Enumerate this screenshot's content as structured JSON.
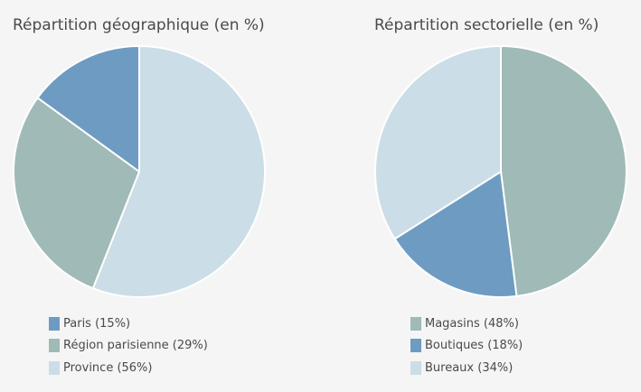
{
  "chart_data": [
    {
      "type": "pie",
      "title": "Répartition géographique (en %)",
      "categories": [
        "Paris",
        "Région parisienne",
        "Province"
      ],
      "values": [
        15,
        29,
        56
      ],
      "colors": [
        "#6e9bc2",
        "#9fbab7",
        "#cbdde6"
      ],
      "legend": [
        "Paris (15%)",
        "Région parisienne (29%)",
        "Province (56%)"
      ],
      "start_order": [
        2,
        1,
        0
      ],
      "legend_placement": "bottom-left"
    },
    {
      "type": "pie",
      "title": "Répartition sectorielle (en %)",
      "categories": [
        "Magasins",
        "Boutiques",
        "Bureaux"
      ],
      "values": [
        48,
        18,
        34
      ],
      "colors": [
        "#9fbab7",
        "#6e9bc2",
        "#cbdde6"
      ],
      "legend": [
        "Magasins (48%)",
        "Boutiques (18%)",
        "Bureaux (34%)"
      ],
      "start_order": [
        0,
        1,
        2
      ],
      "legend_placement": "bottom-left"
    }
  ]
}
